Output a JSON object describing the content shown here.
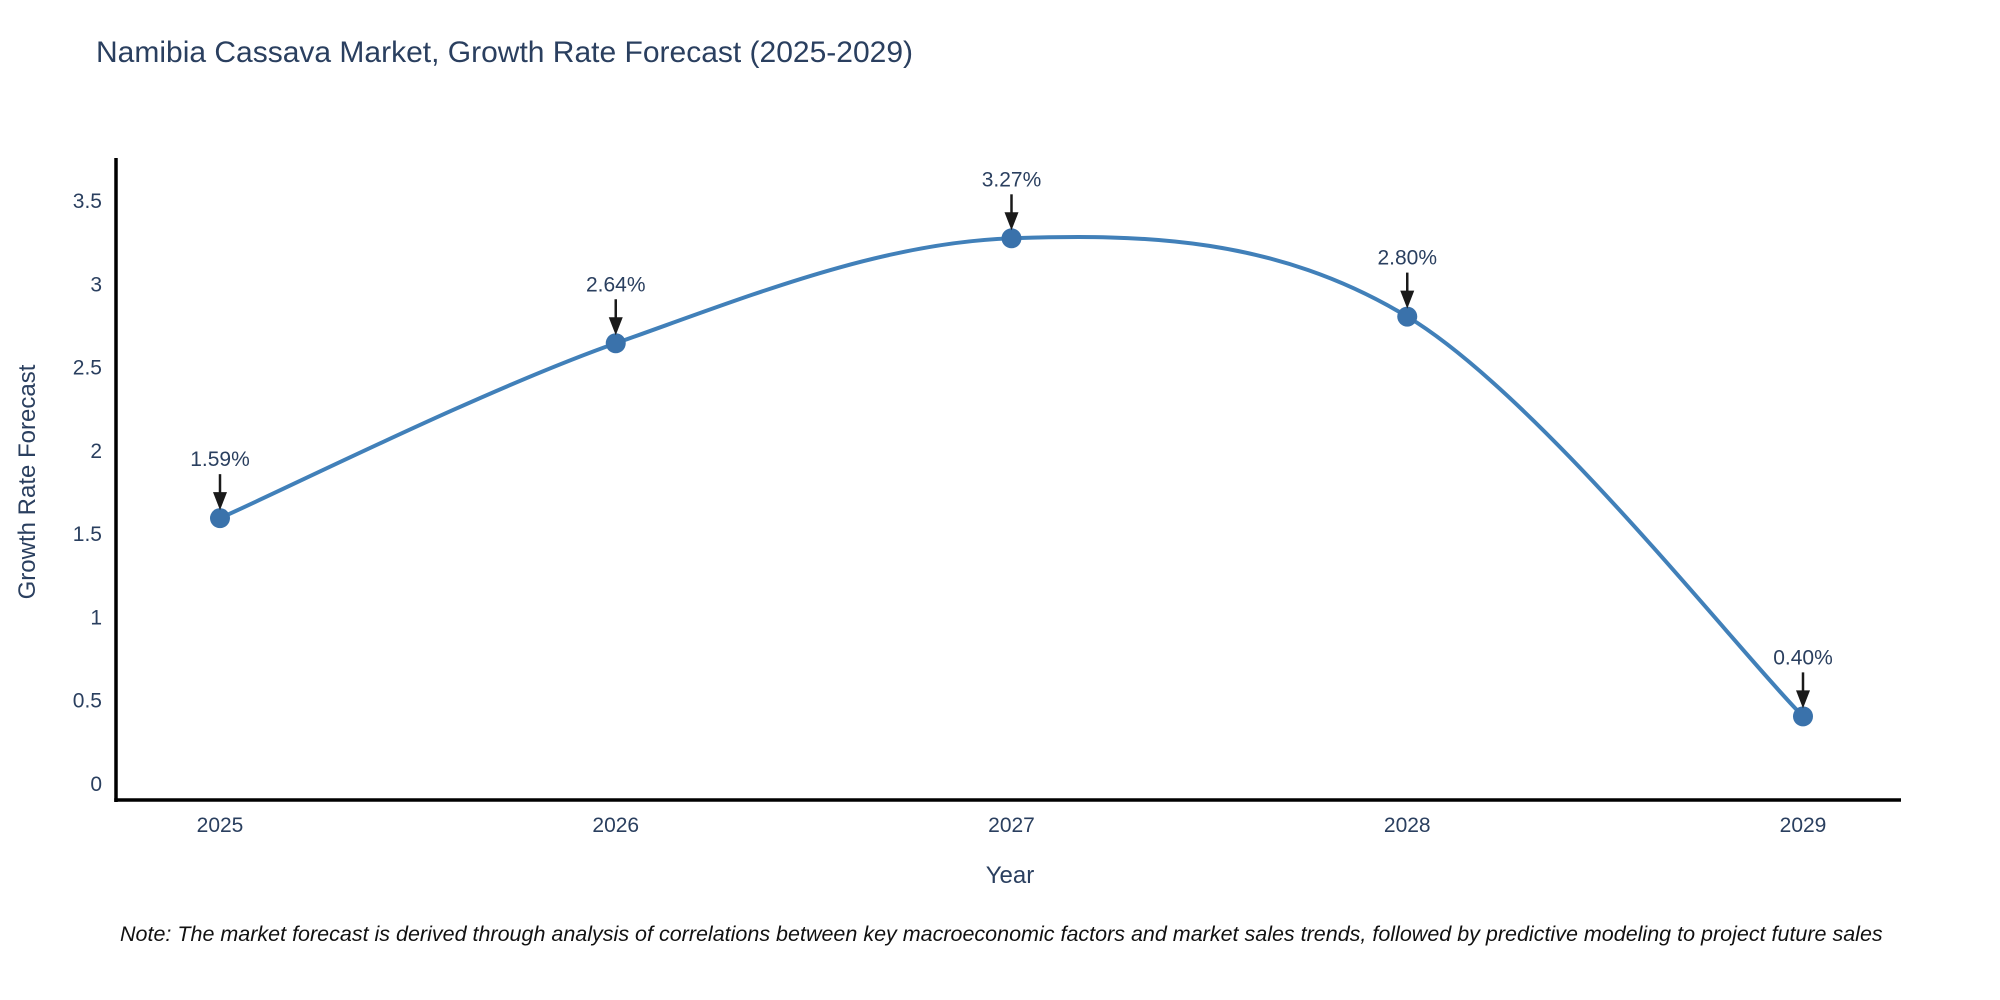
{
  "chart_data": {
    "type": "line",
    "title": "Namibia Cassava Market, Growth Rate Forecast (2025-2029)",
    "xlabel": "Year",
    "ylabel": "Growth Rate Forecast",
    "x": [
      2025,
      2026,
      2027,
      2028,
      2029
    ],
    "categories": [
      "2025",
      "2026",
      "2027",
      "2028",
      "2029"
    ],
    "values": [
      1.59,
      2.64,
      3.27,
      2.8,
      0.4
    ],
    "point_labels": [
      "1.59%",
      "2.64%",
      "3.27%",
      "2.80%",
      "0.40%"
    ],
    "y_ticks": [
      "0",
      "0.5",
      "1",
      "1.5",
      "2",
      "2.5",
      "3",
      "3.5"
    ],
    "y_tick_values": [
      0,
      0.5,
      1,
      1.5,
      2,
      2.5,
      3,
      3.5
    ],
    "ylim": [
      0,
      3.5
    ],
    "grid": false,
    "legend": "none",
    "line_shape": "spline",
    "line_color": "#4180b9",
    "marker_color": "#3a72ab",
    "axis_color": "#000000",
    "annotation_arrow_color": "#1a1a1a"
  },
  "footnote": "Note: The market forecast is derived through analysis of correlations between key macroeconomic factors and market sales trends, followed by predictive modeling to project future sales",
  "colors": {
    "title_text": "#2a3f5f",
    "tick_text": "#2a3f5f",
    "background": "#ffffff"
  }
}
